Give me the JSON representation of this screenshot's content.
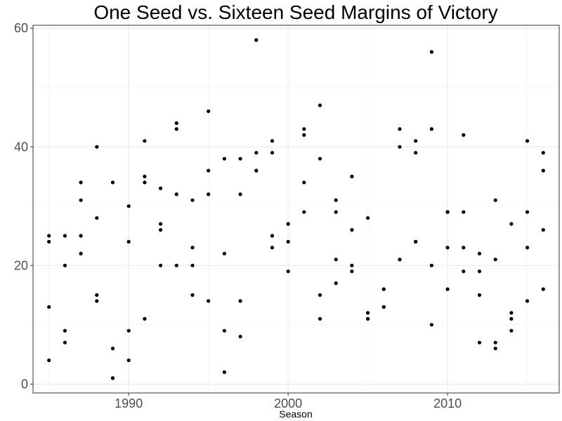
{
  "chart_data": {
    "type": "scatter",
    "title": "One Seed vs. Sixteen Seed Margins of Victory",
    "xlabel": "Season",
    "ylabel": "",
    "xlim": [
      1984,
      2017
    ],
    "ylim": [
      -1.5,
      60.5
    ],
    "x_ticks": [
      1990,
      2000,
      2010
    ],
    "y_ticks": [
      0,
      20,
      40,
      60
    ],
    "x_tick_labels": [
      "1990",
      "2000",
      "2010"
    ],
    "y_tick_labels": [
      "0",
      "20",
      "40",
      "60"
    ],
    "grid": true,
    "point_color": "#000000",
    "points": [
      {
        "x": 1985,
        "y": 25
      },
      {
        "x": 1985,
        "y": 24
      },
      {
        "x": 1985,
        "y": 13
      },
      {
        "x": 1985,
        "y": 4
      },
      {
        "x": 1986,
        "y": 25
      },
      {
        "x": 1986,
        "y": 20
      },
      {
        "x": 1986,
        "y": 9
      },
      {
        "x": 1986,
        "y": 7
      },
      {
        "x": 1987,
        "y": 34
      },
      {
        "x": 1987,
        "y": 31
      },
      {
        "x": 1987,
        "y": 25
      },
      {
        "x": 1987,
        "y": 22
      },
      {
        "x": 1988,
        "y": 40
      },
      {
        "x": 1988,
        "y": 28
      },
      {
        "x": 1988,
        "y": 15
      },
      {
        "x": 1988,
        "y": 14
      },
      {
        "x": 1989,
        "y": 34
      },
      {
        "x": 1989,
        "y": 6
      },
      {
        "x": 1989,
        "y": 1
      },
      {
        "x": 1989,
        "y": 1
      },
      {
        "x": 1990,
        "y": 30
      },
      {
        "x": 1990,
        "y": 24
      },
      {
        "x": 1990,
        "y": 9
      },
      {
        "x": 1990,
        "y": 4
      },
      {
        "x": 1991,
        "y": 41
      },
      {
        "x": 1991,
        "y": 35
      },
      {
        "x": 1991,
        "y": 34
      },
      {
        "x": 1991,
        "y": 11
      },
      {
        "x": 1992,
        "y": 33
      },
      {
        "x": 1992,
        "y": 27
      },
      {
        "x": 1992,
        "y": 26
      },
      {
        "x": 1992,
        "y": 20
      },
      {
        "x": 1993,
        "y": 44
      },
      {
        "x": 1993,
        "y": 43
      },
      {
        "x": 1993,
        "y": 32
      },
      {
        "x": 1993,
        "y": 20
      },
      {
        "x": 1994,
        "y": 31
      },
      {
        "x": 1994,
        "y": 23
      },
      {
        "x": 1994,
        "y": 20
      },
      {
        "x": 1994,
        "y": 15
      },
      {
        "x": 1995,
        "y": 46
      },
      {
        "x": 1995,
        "y": 36
      },
      {
        "x": 1995,
        "y": 32
      },
      {
        "x": 1995,
        "y": 14
      },
      {
        "x": 1996,
        "y": 38
      },
      {
        "x": 1996,
        "y": 22
      },
      {
        "x": 1996,
        "y": 9
      },
      {
        "x": 1996,
        "y": 2
      },
      {
        "x": 1997,
        "y": 38
      },
      {
        "x": 1997,
        "y": 32
      },
      {
        "x": 1997,
        "y": 14
      },
      {
        "x": 1997,
        "y": 8
      },
      {
        "x": 1998,
        "y": 58
      },
      {
        "x": 1998,
        "y": 39
      },
      {
        "x": 1998,
        "y": 36
      },
      {
        "x": 1998,
        "y": 36
      },
      {
        "x": 1999,
        "y": 41
      },
      {
        "x": 1999,
        "y": 39
      },
      {
        "x": 1999,
        "y": 25
      },
      {
        "x": 1999,
        "y": 23
      },
      {
        "x": 2000,
        "y": 27
      },
      {
        "x": 2000,
        "y": 27
      },
      {
        "x": 2000,
        "y": 24
      },
      {
        "x": 2000,
        "y": 19
      },
      {
        "x": 2001,
        "y": 43
      },
      {
        "x": 2001,
        "y": 42
      },
      {
        "x": 2001,
        "y": 34
      },
      {
        "x": 2001,
        "y": 29
      },
      {
        "x": 2002,
        "y": 47
      },
      {
        "x": 2002,
        "y": 38
      },
      {
        "x": 2002,
        "y": 15
      },
      {
        "x": 2002,
        "y": 11
      },
      {
        "x": 2003,
        "y": 31
      },
      {
        "x": 2003,
        "y": 29
      },
      {
        "x": 2003,
        "y": 21
      },
      {
        "x": 2003,
        "y": 17
      },
      {
        "x": 2004,
        "y": 35
      },
      {
        "x": 2004,
        "y": 26
      },
      {
        "x": 2004,
        "y": 20
      },
      {
        "x": 2004,
        "y": 19
      },
      {
        "x": 2005,
        "y": 28
      },
      {
        "x": 2005,
        "y": 12
      },
      {
        "x": 2005,
        "y": 11
      },
      {
        "x": 2005,
        "y": 11
      },
      {
        "x": 2006,
        "y": 16
      },
      {
        "x": 2006,
        "y": 16
      },
      {
        "x": 2006,
        "y": 13
      },
      {
        "x": 2006,
        "y": 13
      },
      {
        "x": 2007,
        "y": 43
      },
      {
        "x": 2007,
        "y": 40
      },
      {
        "x": 2007,
        "y": 21
      },
      {
        "x": 2007,
        "y": 21
      },
      {
        "x": 2008,
        "y": 41
      },
      {
        "x": 2008,
        "y": 39
      },
      {
        "x": 2008,
        "y": 24
      },
      {
        "x": 2008,
        "y": 24
      },
      {
        "x": 2009,
        "y": 56
      },
      {
        "x": 2009,
        "y": 43
      },
      {
        "x": 2009,
        "y": 20
      },
      {
        "x": 2009,
        "y": 10
      },
      {
        "x": 2010,
        "y": 29
      },
      {
        "x": 2010,
        "y": 29
      },
      {
        "x": 2010,
        "y": 23
      },
      {
        "x": 2010,
        "y": 16
      },
      {
        "x": 2011,
        "y": 42
      },
      {
        "x": 2011,
        "y": 29
      },
      {
        "x": 2011,
        "y": 23
      },
      {
        "x": 2011,
        "y": 19
      },
      {
        "x": 2012,
        "y": 22
      },
      {
        "x": 2012,
        "y": 19
      },
      {
        "x": 2012,
        "y": 15
      },
      {
        "x": 2012,
        "y": 7
      },
      {
        "x": 2013,
        "y": 31
      },
      {
        "x": 2013,
        "y": 21
      },
      {
        "x": 2013,
        "y": 7
      },
      {
        "x": 2013,
        "y": 6
      },
      {
        "x": 2014,
        "y": 27
      },
      {
        "x": 2014,
        "y": 12
      },
      {
        "x": 2014,
        "y": 11
      },
      {
        "x": 2014,
        "y": 9
      },
      {
        "x": 2015,
        "y": 41
      },
      {
        "x": 2015,
        "y": 29
      },
      {
        "x": 2015,
        "y": 23
      },
      {
        "x": 2015,
        "y": 14
      },
      {
        "x": 2016,
        "y": 39
      },
      {
        "x": 2016,
        "y": 36
      },
      {
        "x": 2016,
        "y": 26
      },
      {
        "x": 2016,
        "y": 16
      }
    ]
  }
}
